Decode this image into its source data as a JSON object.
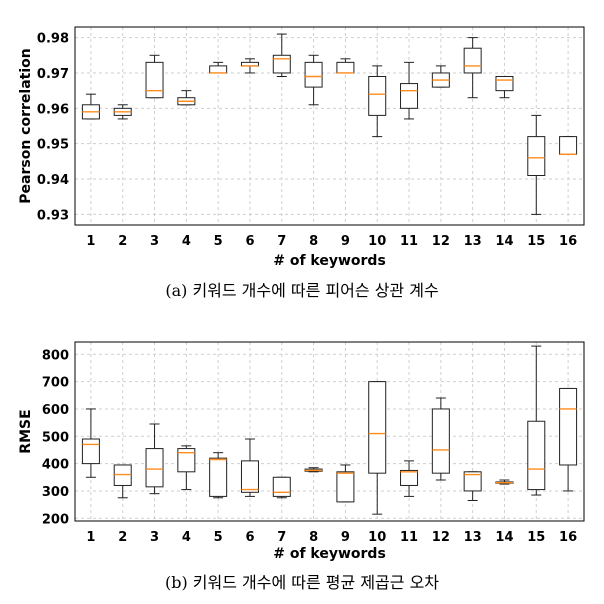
{
  "chart_data": [
    {
      "type": "box",
      "xlabel": "# of keywords",
      "ylabel": "Pearson correlation",
      "caption": "(a) 키워드 개수에 따른 피어슨 상관 계수",
      "categories": [
        "1",
        "2",
        "3",
        "4",
        "5",
        "6",
        "7",
        "8",
        "9",
        "10",
        "11",
        "12",
        "13",
        "14",
        "15",
        "16"
      ],
      "ylim": [
        0.927,
        0.983
      ],
      "yticks": [
        0.93,
        0.94,
        0.95,
        0.96,
        0.97,
        0.98
      ],
      "ytick_labels": [
        "0.93",
        "0.94",
        "0.95",
        "0.96",
        "0.97",
        "0.98"
      ],
      "grid": true,
      "median_color": "#ff8c1a",
      "boxes": [
        {
          "min": 0.957,
          "q1": 0.957,
          "median": 0.959,
          "q3": 0.961,
          "max": 0.964
        },
        {
          "min": 0.957,
          "q1": 0.958,
          "median": 0.959,
          "q3": 0.96,
          "max": 0.961
        },
        {
          "min": 0.963,
          "q1": 0.963,
          "median": 0.965,
          "q3": 0.973,
          "max": 0.975
        },
        {
          "min": 0.961,
          "q1": 0.961,
          "median": 0.962,
          "q3": 0.963,
          "max": 0.965
        },
        {
          "min": 0.97,
          "q1": 0.97,
          "median": 0.97,
          "q3": 0.972,
          "max": 0.973
        },
        {
          "min": 0.97,
          "q1": 0.972,
          "median": 0.972,
          "q3": 0.973,
          "max": 0.974
        },
        {
          "min": 0.969,
          "q1": 0.97,
          "median": 0.974,
          "q3": 0.975,
          "max": 0.981
        },
        {
          "min": 0.961,
          "q1": 0.966,
          "median": 0.969,
          "q3": 0.973,
          "max": 0.975
        },
        {
          "min": 0.97,
          "q1": 0.97,
          "median": 0.97,
          "q3": 0.973,
          "max": 0.974
        },
        {
          "min": 0.952,
          "q1": 0.958,
          "median": 0.964,
          "q3": 0.969,
          "max": 0.972
        },
        {
          "min": 0.957,
          "q1": 0.96,
          "median": 0.965,
          "q3": 0.967,
          "max": 0.973
        },
        {
          "min": 0.966,
          "q1": 0.966,
          "median": 0.968,
          "q3": 0.97,
          "max": 0.972
        },
        {
          "min": 0.963,
          "q1": 0.97,
          "median": 0.972,
          "q3": 0.977,
          "max": 0.98
        },
        {
          "min": 0.963,
          "q1": 0.965,
          "median": 0.968,
          "q3": 0.969,
          "max": 0.969
        },
        {
          "min": 0.93,
          "q1": 0.941,
          "median": 0.946,
          "q3": 0.952,
          "max": 0.958
        },
        {
          "min": 0.947,
          "q1": 0.947,
          "median": 0.947,
          "q3": 0.952,
          "max": 0.952
        }
      ]
    },
    {
      "type": "box",
      "xlabel": "# of keywords",
      "ylabel": "RMSE",
      "caption": "(b) 키워드 개수에 따른 평균 제곱근 오차",
      "categories": [
        "1",
        "2",
        "3",
        "4",
        "5",
        "6",
        "7",
        "8",
        "9",
        "10",
        "11",
        "12",
        "13",
        "14",
        "15",
        "16"
      ],
      "ylim": [
        190,
        845
      ],
      "yticks": [
        200,
        300,
        400,
        500,
        600,
        700,
        800
      ],
      "ytick_labels": [
        "200",
        "300",
        "400",
        "500",
        "600",
        "700",
        "800"
      ],
      "grid": true,
      "median_color": "#ff8c1a",
      "boxes": [
        {
          "min": 350,
          "q1": 400,
          "median": 470,
          "q3": 490,
          "max": 600
        },
        {
          "min": 275,
          "q1": 320,
          "median": 360,
          "q3": 395,
          "max": 395
        },
        {
          "min": 290,
          "q1": 315,
          "median": 380,
          "q3": 455,
          "max": 545
        },
        {
          "min": 305,
          "q1": 370,
          "median": 440,
          "q3": 455,
          "max": 465
        },
        {
          "min": 275,
          "q1": 280,
          "median": 415,
          "q3": 420,
          "max": 440
        },
        {
          "min": 280,
          "q1": 295,
          "median": 305,
          "q3": 410,
          "max": 490
        },
        {
          "min": 275,
          "q1": 280,
          "median": 295,
          "q3": 350,
          "max": 350
        },
        {
          "min": 370,
          "q1": 372,
          "median": 375,
          "q3": 380,
          "max": 385
        },
        {
          "min": 260,
          "q1": 260,
          "median": 365,
          "q3": 370,
          "max": 395
        },
        {
          "min": 215,
          "q1": 365,
          "median": 510,
          "q3": 700,
          "max": 700
        },
        {
          "min": 280,
          "q1": 320,
          "median": 370,
          "q3": 375,
          "max": 410
        },
        {
          "min": 340,
          "q1": 365,
          "median": 450,
          "q3": 600,
          "max": 640
        },
        {
          "min": 265,
          "q1": 300,
          "median": 360,
          "q3": 370,
          "max": 370
        },
        {
          "min": 325,
          "q1": 328,
          "median": 330,
          "q3": 333,
          "max": 340
        },
        {
          "min": 285,
          "q1": 305,
          "median": 380,
          "q3": 555,
          "max": 830
        },
        {
          "min": 300,
          "q1": 395,
          "median": 600,
          "q3": 675,
          "max": 675
        }
      ]
    }
  ]
}
